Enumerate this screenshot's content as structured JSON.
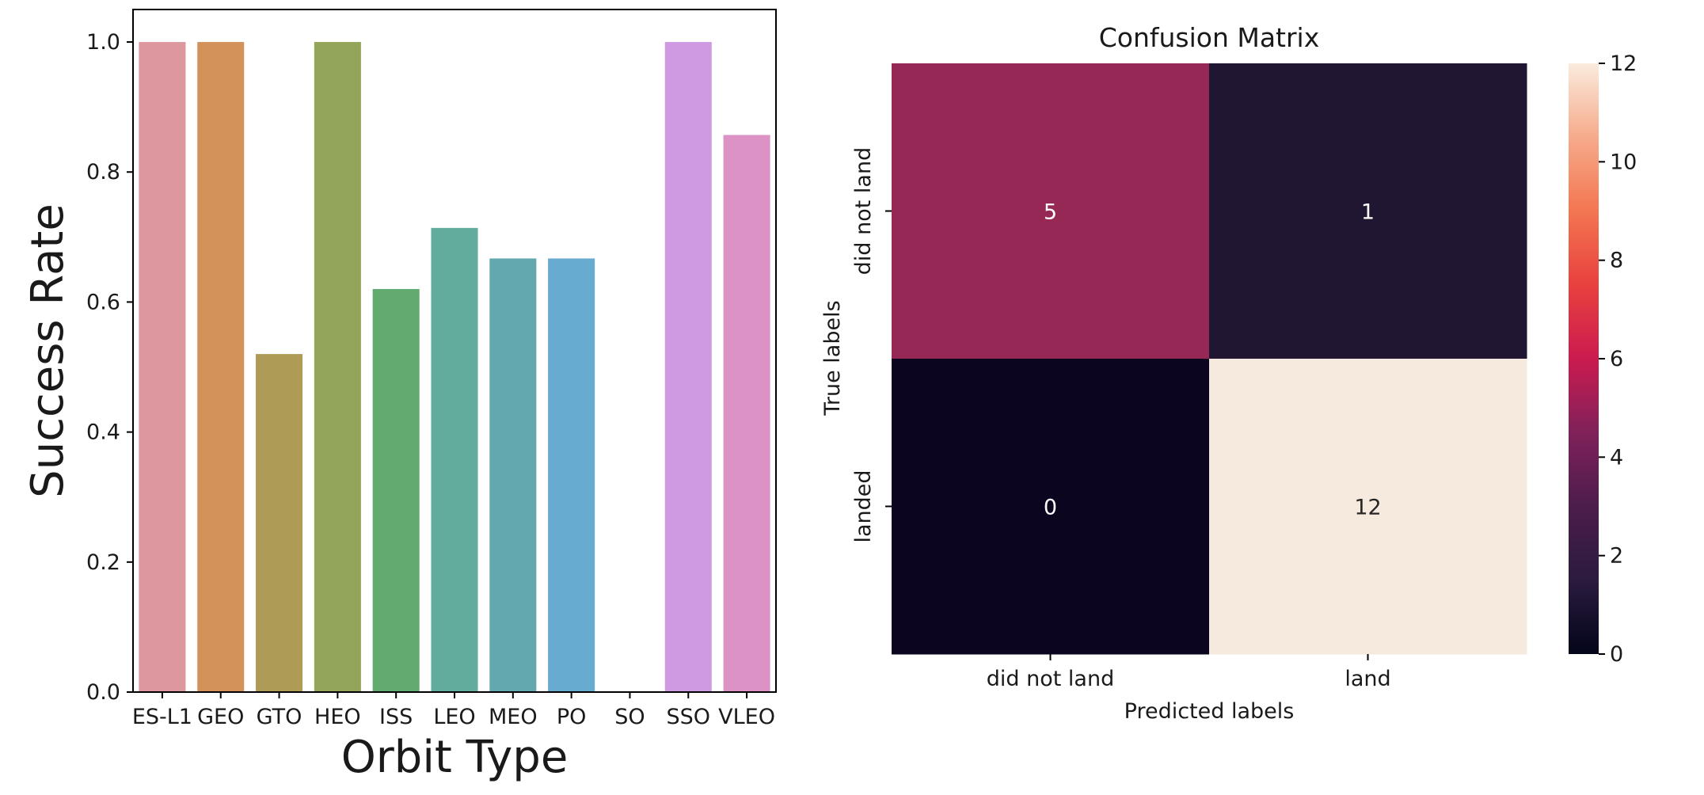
{
  "chart_data": [
    {
      "type": "bar",
      "title": "",
      "xlabel": "Orbit Type",
      "ylabel": "Success Rate",
      "categories": [
        "ES-L1",
        "GEO",
        "GTO",
        "HEO",
        "ISS",
        "LEO",
        "MEO",
        "PO",
        "SO",
        "SSO",
        "VLEO"
      ],
      "values": [
        1.0,
        1.0,
        0.52,
        1.0,
        0.62,
        0.714,
        0.667,
        0.667,
        0.0,
        1.0,
        0.857
      ],
      "colors": [
        "#dd979e",
        "#d3925a",
        "#ae9b56",
        "#92a55a",
        "#62ab70",
        "#62ac9d",
        "#63a8ae",
        "#68abd0",
        "#b7a2e4",
        "#cf9ae2",
        "#dd92c6"
      ],
      "ylim": [
        0,
        1.05
      ],
      "yticks": [
        "0.0",
        "0.2",
        "0.4",
        "0.6",
        "0.8",
        "1.0"
      ],
      "grid": false,
      "legend": false
    },
    {
      "type": "heatmap",
      "title": "Confusion Matrix",
      "xlabel": "Predicted labels",
      "ylabel": "True labels",
      "x_categories": [
        "did not land",
        "land"
      ],
      "y_categories": [
        "did not land",
        "landed"
      ],
      "matrix": [
        [
          5,
          1
        ],
        [
          0,
          12
        ]
      ],
      "cell_colors": [
        [
          "#962856",
          "#211631"
        ],
        [
          "#0b0520",
          "#f6e9de"
        ]
      ],
      "annotation_colors": [
        [
          "#ffffff",
          "#ffffff"
        ],
        [
          "#ffffff",
          "#262626"
        ]
      ],
      "colorbar": {
        "min": 0,
        "max": 12,
        "ticks": [
          "0",
          "2",
          "4",
          "6",
          "8",
          "10",
          "12"
        ],
        "colormap": "rocket"
      }
    }
  ]
}
